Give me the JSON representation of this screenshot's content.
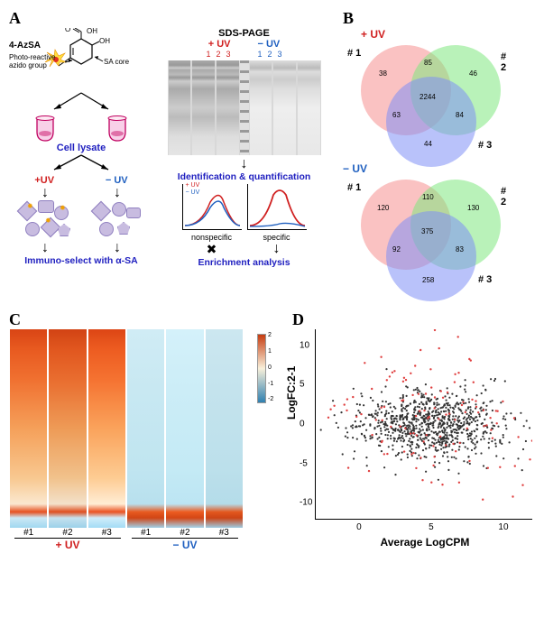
{
  "labels": {
    "panelA": "A",
    "panelB": "B",
    "panelC": "C",
    "panelD": "D",
    "compound": "4-AzSA",
    "oh1": "OH",
    "oh2": "OH",
    "o": "O",
    "photoReactive": "Photo-reactive",
    "azidoGroup": "azido group",
    "saCore": "SA core",
    "cellLysate": "Cell lysate",
    "plusUV": "+UV",
    "minusUV": "− UV",
    "plusUVred": "+ UV",
    "minusUVblue": "− UV",
    "immunoSelect": "Immuno-select with α-SA",
    "sdsPage": "SDS-PAGE",
    "identification": "Identification & quantification",
    "nonspecific": "nonspecific",
    "specific": "specific",
    "enrichment": "Enrichment analysis",
    "lane1": "1",
    "lane2": "2",
    "lane3": "3",
    "n1": "# 1",
    "n2": "# 2",
    "n3": "# 3"
  },
  "vennTop": {
    "colors": {
      "c1": "#f08080",
      "c2": "#80e080",
      "c3": "#8080f0"
    },
    "vals": {
      "a": "38",
      "b": "46",
      "c": "44",
      "ab": "85",
      "ac": "63",
      "bc": "84",
      "abc": "2244"
    }
  },
  "vennBottom": {
    "colors": {
      "c1": "#f08080",
      "c2": "#80e080",
      "c3": "#8080f0"
    },
    "vals": {
      "a": "120",
      "b": "130",
      "c": "258",
      "ab": "110",
      "ac": "92",
      "bc": "83",
      "abc": "375"
    }
  },
  "heatmap": {
    "replicates": [
      "#1",
      "#2",
      "#3"
    ],
    "colorbar_ticks": [
      "2",
      "1",
      "0",
      "-1",
      "-2"
    ]
  },
  "scatter": {
    "xlabel": "Average LogCPM",
    "ylabel": "LogFC:2-1",
    "yticks": [
      -10,
      -5,
      0,
      5,
      10
    ],
    "xticks": [
      0,
      5,
      10
    ],
    "ylim": [
      -12,
      12
    ],
    "xlim": [
      -3,
      12
    ],
    "point_color_main": "#333333",
    "point_color_hl": "#e04040"
  }
}
